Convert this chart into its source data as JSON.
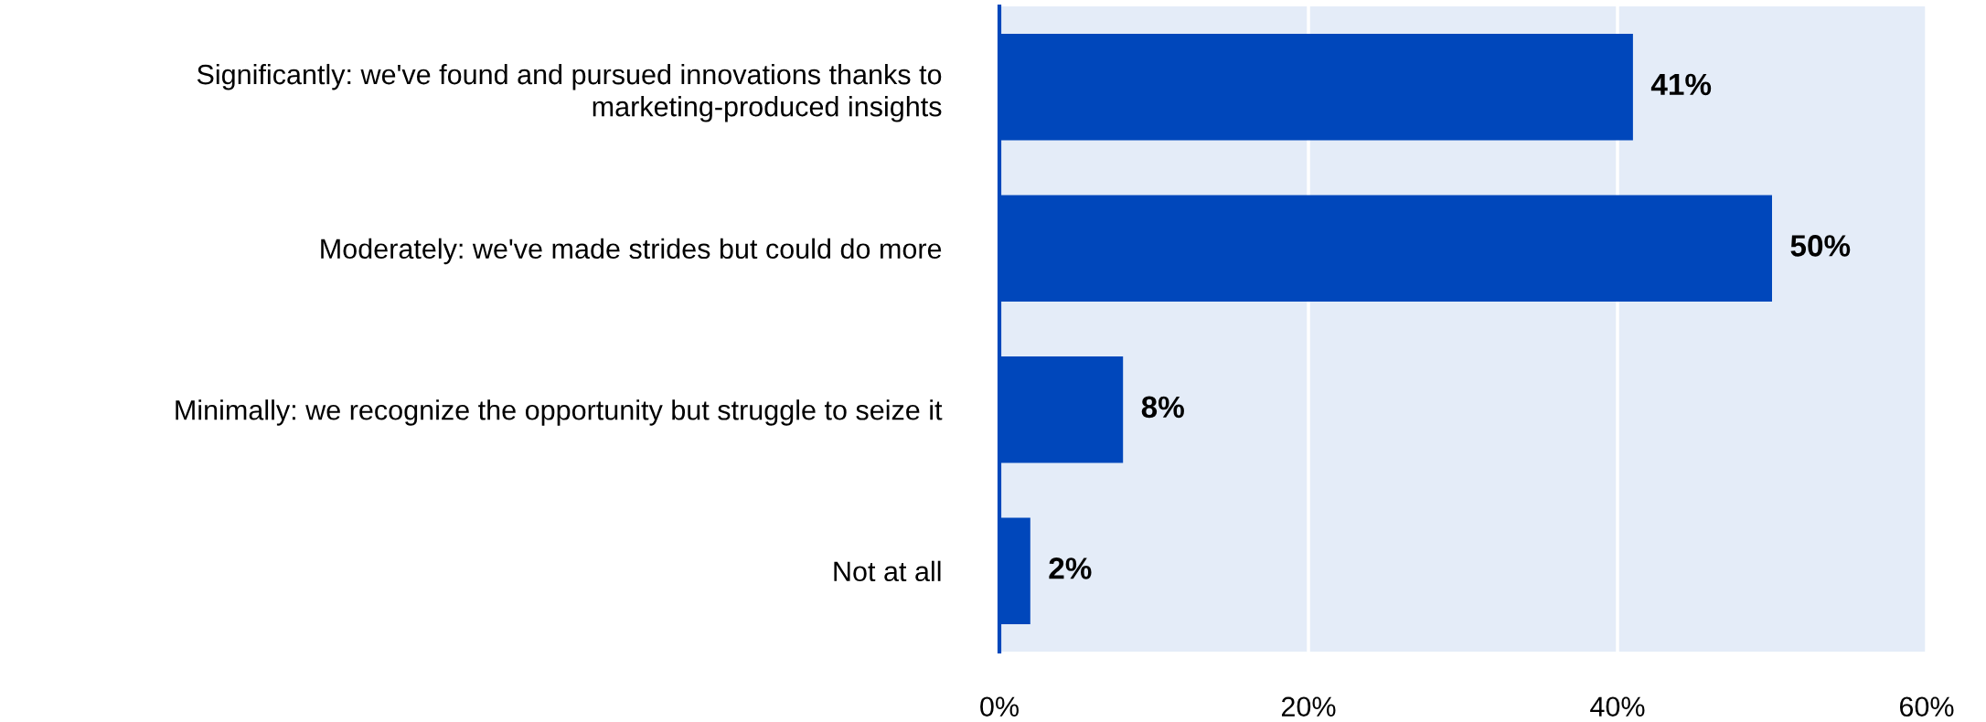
{
  "chart_data": {
    "type": "bar",
    "orientation": "horizontal",
    "categories": [
      "Significantly: we've found and pursued innovations thanks to\nmarketing-produced insights",
      "Moderately: we've made strides but could do more",
      "Minimally: we recognize the opportunity but struggle to seize it",
      "Not at all"
    ],
    "values": [
      41,
      50,
      8,
      2
    ],
    "color": "#0047bb",
    "value_labels": [
      "41%",
      "50%",
      "8%",
      "2%"
    ],
    "xlim": [
      0,
      60
    ],
    "xticks": [
      {
        "value": 0,
        "label": "0%"
      },
      {
        "value": 20,
        "label": "20%"
      },
      {
        "value": 40,
        "label": "40%"
      },
      {
        "value": 60,
        "label": "60%"
      }
    ],
    "grid": "x",
    "legend": false
  }
}
